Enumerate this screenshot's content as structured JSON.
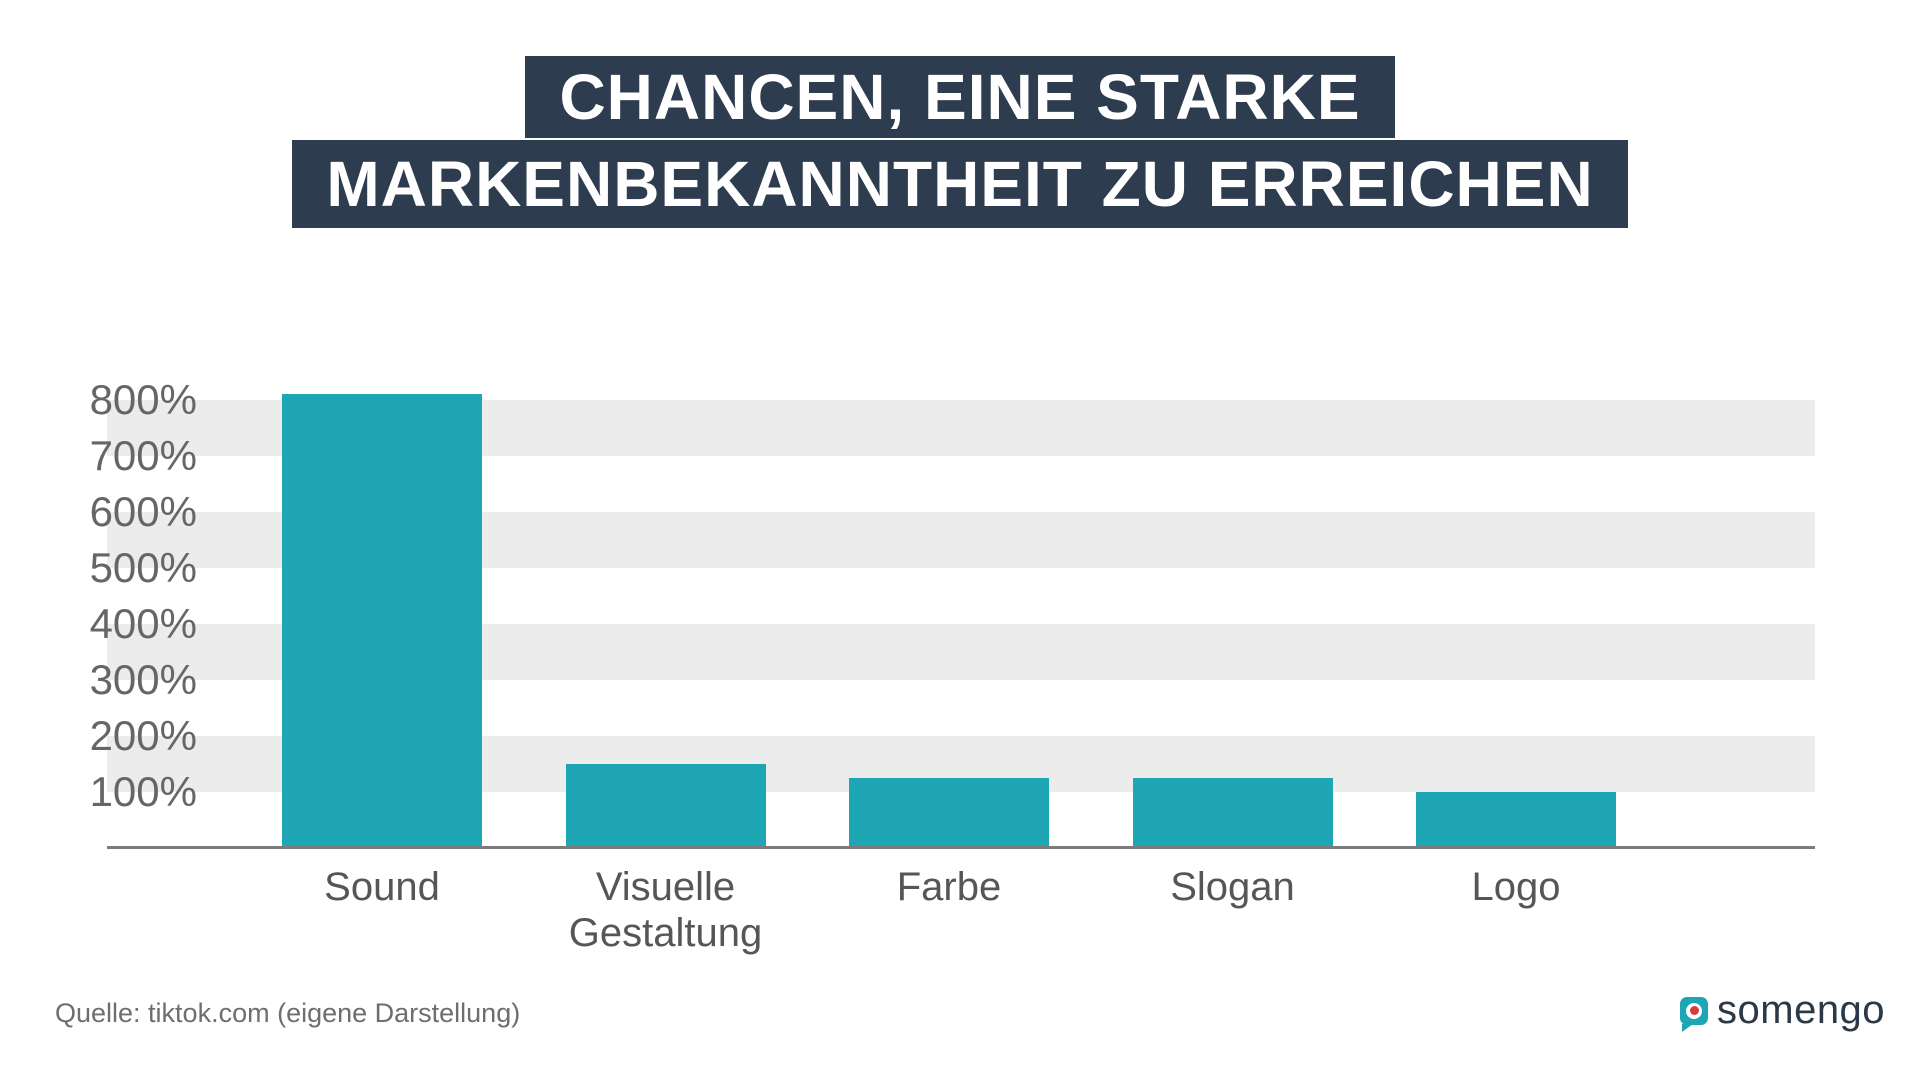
{
  "title": {
    "line1": "CHANCEN, EINE STARKE",
    "line2": "MARKENBEKANNTHEIT ZU ERREICHEN"
  },
  "chart_data": {
    "type": "bar",
    "categories": [
      "Sound",
      "Visuelle Gestaltung",
      "Farbe",
      "Slogan",
      "Logo"
    ],
    "values": [
      810,
      150,
      125,
      125,
      100
    ],
    "value_unit": "%",
    "y_ticks": [
      "800%",
      "700%",
      "600%",
      "500%",
      "400%",
      "300%",
      "200%",
      "100%"
    ],
    "ylim": [
      0,
      900
    ],
    "title": "",
    "xlabel": "",
    "ylabel": "",
    "legend": "none",
    "grid": "alternating horizontal bands on even 100% intervals",
    "bar_color": "#1fa6b4",
    "band_color": "#ececec",
    "axis_color": "#7c7c7c"
  },
  "source": {
    "text": "Quelle: tiktok.com (eigene Darstellung)"
  },
  "branding": {
    "name": "somengo",
    "icon": "speech-bubble-record-icon",
    "colors": {
      "teal": "#1fa6b4",
      "navy": "#2d3c4e",
      "red": "#d93a40"
    }
  }
}
